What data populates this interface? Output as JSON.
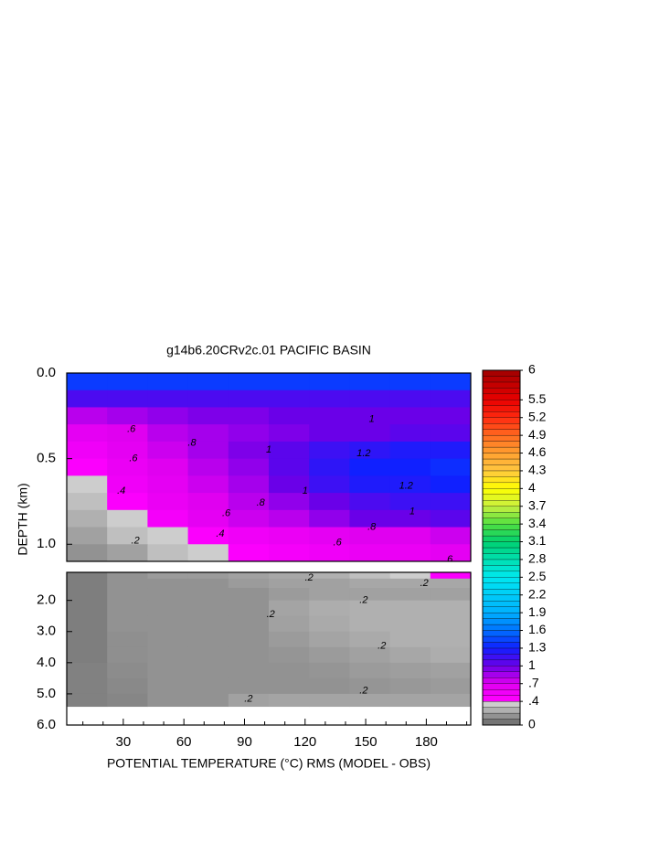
{
  "chart_data": {
    "type": "contour",
    "title": "g14b6.20CRv2c.01 PACIFIC BASIN",
    "xlabel": "POTENTIAL TEMPERATURE (°C) RMS (MODEL - OBS)",
    "ylabel": "DEPTH (km)",
    "xlim": [
      2,
      202
    ],
    "xticks": [
      30,
      60,
      90,
      120,
      150,
      180
    ],
    "xminor": [
      10,
      20,
      40,
      50,
      70,
      80,
      100,
      110,
      130,
      140,
      160,
      170,
      190,
      200
    ],
    "panels": [
      {
        "ylim": [
          0,
          1.1
        ],
        "yticks": [
          {
            "value": 0,
            "label": "0.0"
          },
          {
            "value": 0.5,
            "label": "0.5"
          },
          {
            "value": 1,
            "label": "1.0"
          }
        ]
      },
      {
        "ylim": [
          1.1,
          6.0
        ],
        "yticks": [
          {
            "value": 2,
            "label": "2.0"
          },
          {
            "value": 3,
            "label": "3.0"
          },
          {
            "value": 4,
            "label": "4.0"
          },
          {
            "value": 5,
            "label": "5.0"
          },
          {
            "value": 6,
            "label": "6.0"
          }
        ]
      }
    ],
    "x_bins": [
      2,
      22,
      42,
      62,
      82,
      102,
      122,
      142,
      162,
      182,
      202
    ],
    "depth_bins": [
      0,
      0.1,
      0.2,
      0.3,
      0.4,
      0.5,
      0.6,
      0.7,
      0.8,
      0.9,
      1.0,
      1.1,
      1.3,
      1.6,
      2.0,
      2.5,
      3.0,
      3.5,
      4.0,
      4.5,
      5.0,
      5.4
    ],
    "z": [
      [
        1.4,
        1.4,
        1.4,
        1.4,
        1.4,
        1.4,
        1.4,
        1.4,
        1.4,
        1.4
      ],
      [
        1.1,
        1.1,
        1.1,
        1.1,
        1.1,
        1.1,
        1.1,
        1.1,
        1.1,
        1.1
      ],
      [
        0.8,
        0.85,
        0.9,
        0.95,
        0.95,
        1.0,
        1.0,
        1.0,
        1.0,
        1.0
      ],
      [
        0.65,
        0.7,
        0.8,
        0.85,
        0.9,
        0.95,
        1.0,
        1.0,
        1.05,
        1.05
      ],
      [
        0.55,
        0.65,
        0.75,
        0.85,
        0.95,
        1.05,
        1.15,
        1.2,
        1.25,
        1.25
      ],
      [
        0.45,
        0.6,
        0.7,
        0.8,
        0.9,
        1.05,
        1.2,
        1.3,
        1.3,
        1.35
      ],
      [
        0.35,
        0.55,
        0.65,
        0.75,
        0.85,
        1.0,
        1.15,
        1.25,
        1.25,
        1.3
      ],
      [
        0.3,
        0.45,
        0.6,
        0.7,
        0.8,
        0.9,
        1.0,
        1.1,
        1.15,
        1.15
      ],
      [
        0.25,
        0.35,
        0.5,
        0.65,
        0.75,
        0.8,
        0.9,
        1.0,
        1.0,
        1.05
      ],
      [
        0.2,
        0.3,
        0.35,
        0.45,
        0.55,
        0.6,
        0.65,
        0.7,
        0.7,
        0.75
      ],
      [
        0.15,
        0.2,
        0.3,
        0.35,
        0.45,
        0.5,
        0.55,
        0.6,
        0.6,
        0.65
      ],
      [
        0.08,
        0.15,
        0.18,
        0.18,
        0.2,
        0.22,
        0.25,
        0.3,
        0.35,
        0.45
      ],
      [
        0.08,
        0.15,
        0.15,
        0.15,
        0.18,
        0.2,
        0.2,
        0.22,
        0.22,
        0.22
      ],
      [
        0.08,
        0.15,
        0.15,
        0.15,
        0.15,
        0.18,
        0.2,
        0.2,
        0.2,
        0.2
      ],
      [
        0.08,
        0.15,
        0.15,
        0.15,
        0.15,
        0.21,
        0.24,
        0.25,
        0.25,
        0.25
      ],
      [
        0.08,
        0.15,
        0.15,
        0.15,
        0.15,
        0.2,
        0.23,
        0.25,
        0.25,
        0.25
      ],
      [
        0.08,
        0.14,
        0.15,
        0.15,
        0.15,
        0.18,
        0.21,
        0.23,
        0.25,
        0.25
      ],
      [
        0.08,
        0.14,
        0.15,
        0.15,
        0.15,
        0.16,
        0.18,
        0.2,
        0.22,
        0.24
      ],
      [
        0.09,
        0.13,
        0.15,
        0.15,
        0.15,
        0.15,
        0.16,
        0.18,
        0.19,
        0.2
      ],
      [
        0.09,
        0.12,
        0.15,
        0.15,
        0.15,
        0.15,
        0.15,
        0.16,
        0.17,
        0.18
      ],
      [
        0.09,
        0.11,
        0.15,
        0.15,
        0.2,
        0.21,
        0.21,
        0.21,
        0.21,
        0.21
      ]
    ],
    "contour_labels": [
      {
        "text": ".6",
        "x": 34,
        "depth": 0.33
      },
      {
        "text": ".6",
        "x": 35,
        "depth": 0.5
      },
      {
        "text": ".4",
        "x": 29,
        "depth": 0.69
      },
      {
        "text": ".2",
        "x": 36,
        "depth": 0.98
      },
      {
        "text": ".4",
        "x": 78,
        "depth": 0.94
      },
      {
        "text": ".6",
        "x": 81,
        "depth": 0.82
      },
      {
        "text": ".8",
        "x": 98,
        "depth": 0.76
      },
      {
        "text": ".8",
        "x": 64,
        "depth": 0.41
      },
      {
        "text": "1",
        "x": 120,
        "depth": 0.69
      },
      {
        "text": "1",
        "x": 102,
        "depth": 0.45
      },
      {
        "text": "1.2",
        "x": 149,
        "depth": 0.47
      },
      {
        "text": "1.2",
        "x": 170,
        "depth": 0.66
      },
      {
        "text": "1",
        "x": 153,
        "depth": 0.27
      },
      {
        "text": "1",
        "x": 173,
        "depth": 0.81
      },
      {
        "text": ".8",
        "x": 153,
        "depth": 0.9
      },
      {
        "text": ".6",
        "x": 136,
        "depth": 0.99
      },
      {
        "text": ".6",
        "x": 191,
        "depth": 1.09
      },
      {
        "text": ".2",
        "x": 122,
        "depth": 1.28
      },
      {
        "text": ".2",
        "x": 179,
        "depth": 1.45
      },
      {
        "text": ".2",
        "x": 149,
        "depth": 2.0
      },
      {
        "text": ".2",
        "x": 103,
        "depth": 2.45
      },
      {
        "text": ".2",
        "x": 158,
        "depth": 3.47
      },
      {
        "text": ".2",
        "x": 149,
        "depth": 4.9
      },
      {
        "text": ".2",
        "x": 92,
        "depth": 5.16
      }
    ],
    "colorbar": {
      "lim": [
        0,
        6
      ],
      "step": 0.1,
      "ticks": [
        6,
        5.5,
        5.2,
        4.9,
        4.6,
        4.3,
        4,
        3.7,
        3.4,
        3.1,
        2.8,
        2.5,
        2.2,
        1.9,
        1.6,
        1.3,
        1,
        {
          "value": 0.7,
          "label": ".7"
        },
        {
          "value": 0.4,
          "label": ".4"
        },
        0
      ],
      "colormap": [
        {
          "value": 0,
          "color": "#666666"
        },
        {
          "value": 0.4,
          "color": "#dcdcdc"
        },
        {
          "value": 0.41,
          "color": "#ff00ff"
        },
        {
          "value": 0.7,
          "color": "#e000f0"
        },
        {
          "value": 1.0,
          "color": "#6a00e8"
        },
        {
          "value": 1.3,
          "color": "#1020ff"
        },
        {
          "value": 1.6,
          "color": "#0070ff"
        },
        {
          "value": 1.9,
          "color": "#00b0ff"
        },
        {
          "value": 2.5,
          "color": "#00e8f0"
        },
        {
          "value": 2.8,
          "color": "#00e0b0"
        },
        {
          "value": 3.1,
          "color": "#00d070"
        },
        {
          "value": 3.4,
          "color": "#50e040"
        },
        {
          "value": 3.7,
          "color": "#c8f040"
        },
        {
          "value": 4.0,
          "color": "#ffff00"
        },
        {
          "value": 4.3,
          "color": "#ffc840"
        },
        {
          "value": 4.6,
          "color": "#ffa030"
        },
        {
          "value": 4.9,
          "color": "#ff6a20"
        },
        {
          "value": 5.2,
          "color": "#ff2a10"
        },
        {
          "value": 5.5,
          "color": "#e80000"
        },
        {
          "value": 6.0,
          "color": "#a00000"
        }
      ]
    }
  }
}
